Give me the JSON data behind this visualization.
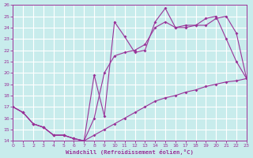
{
  "xlabel": "Windchill (Refroidissement éolien,°C)",
  "bg_color": "#c8ecec",
  "grid_color": "#ffffff",
  "line_color": "#993399",
  "ylim": [
    14,
    26
  ],
  "xlim": [
    0,
    23
  ],
  "yticks": [
    14,
    15,
    16,
    17,
    18,
    19,
    20,
    21,
    22,
    23,
    24,
    25,
    26
  ],
  "xticks": [
    0,
    1,
    2,
    3,
    4,
    5,
    6,
    7,
    8,
    9,
    10,
    11,
    12,
    13,
    14,
    15,
    16,
    17,
    18,
    19,
    20,
    21,
    22,
    23
  ],
  "line1_x": [
    0,
    1,
    2,
    3,
    4,
    5,
    6,
    7,
    8,
    9,
    10,
    11,
    12,
    13,
    14,
    15,
    16,
    17,
    18,
    19,
    20,
    21,
    22,
    23
  ],
  "line1_y": [
    17.0,
    16.5,
    15.5,
    15.2,
    14.5,
    14.5,
    14.2,
    14.0,
    14.5,
    15.0,
    15.5,
    16.0,
    16.5,
    17.0,
    17.5,
    17.8,
    18.0,
    18.3,
    18.5,
    18.8,
    19.0,
    19.2,
    19.3,
    19.5
  ],
  "line2_x": [
    0,
    1,
    2,
    3,
    4,
    5,
    6,
    7,
    8,
    9,
    10,
    11,
    12,
    13,
    14,
    15,
    16,
    17,
    18,
    19,
    20,
    21,
    22,
    23
  ],
  "line2_y": [
    17.0,
    16.5,
    15.5,
    15.2,
    14.5,
    14.5,
    14.2,
    14.0,
    16.0,
    20.0,
    21.5,
    21.8,
    22.0,
    22.5,
    24.0,
    24.5,
    24.0,
    24.0,
    24.2,
    24.8,
    25.0,
    23.0,
    21.0,
    19.5
  ],
  "line3_x": [
    0,
    1,
    2,
    3,
    4,
    5,
    6,
    7,
    8,
    9,
    10,
    11,
    12,
    13,
    14,
    15,
    16,
    17,
    18,
    19,
    20,
    21,
    22,
    23
  ],
  "line3_y": [
    17.0,
    16.5,
    15.5,
    15.2,
    14.5,
    14.5,
    14.2,
    14.0,
    19.8,
    16.2,
    24.5,
    23.2,
    21.8,
    22.0,
    24.5,
    25.7,
    24.0,
    24.2,
    24.2,
    24.2,
    24.8,
    25.0,
    23.5,
    19.5
  ]
}
